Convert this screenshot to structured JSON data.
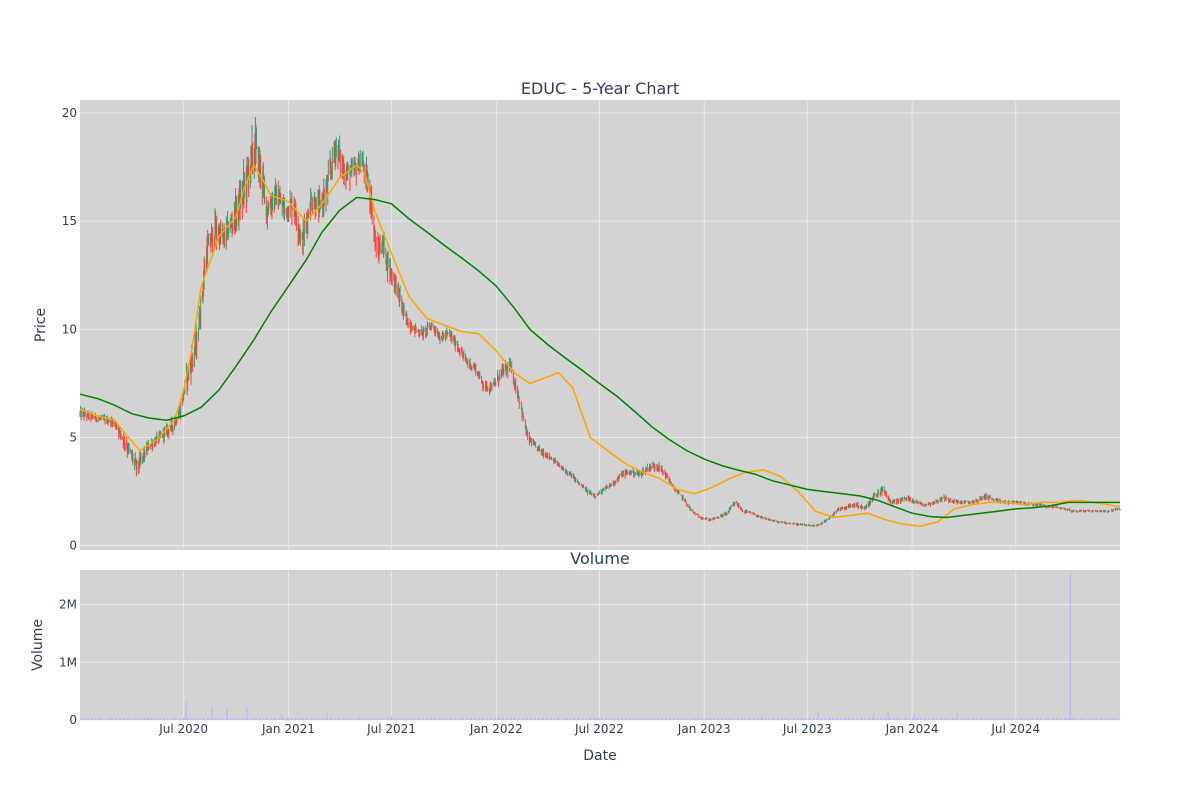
{
  "chart_data": [
    {
      "type": "candlestick",
      "title": "EDUC - 5-Year Chart",
      "xlabel": "",
      "ylabel": "Price",
      "ylim": [
        -0.2,
        20.6
      ],
      "yticks": [
        0,
        5,
        10,
        15,
        20
      ],
      "xlim": [
        "2020-01-01",
        "2024-12-31"
      ],
      "grid": true,
      "legend": "none",
      "colors": {
        "plot_bg": "#d3d3d3",
        "grid": "#e9e9ec",
        "up": "#3d9970",
        "down": "#ff4136",
        "short_ma": "#ffa500",
        "long_ma": "#008000"
      },
      "series": [
        {
          "type": "line",
          "color": "#ffa500",
          "x": [
            "2020-01-01",
            "2020-02-01",
            "2020-03-01",
            "2020-03-20",
            "2020-04-15",
            "2020-05-15",
            "2020-06-15",
            "2020-07-01",
            "2020-07-15",
            "2020-08-01",
            "2020-09-01",
            "2020-10-01",
            "2020-10-15",
            "2020-11-01",
            "2020-11-15",
            "2020-12-01",
            "2021-01-01",
            "2021-02-01",
            "2021-03-01",
            "2021-04-01",
            "2021-05-01",
            "2021-05-15",
            "2021-06-01",
            "2021-07-01",
            "2021-08-01",
            "2021-09-01",
            "2021-10-01",
            "2021-11-01",
            "2021-12-01",
            "2022-01-01",
            "2022-02-01",
            "2022-03-01",
            "2022-04-01",
            "2022-04-20",
            "2022-05-15",
            "2022-06-15",
            "2022-07-15",
            "2022-08-15",
            "2022-09-15",
            "2022-10-15",
            "2022-11-15",
            "2022-12-15",
            "2023-01-15",
            "2023-02-15",
            "2023-03-15",
            "2023-04-15",
            "2023-05-15",
            "2023-06-15",
            "2023-07-15",
            "2023-08-15",
            "2023-09-15",
            "2023-10-15",
            "2023-11-15",
            "2023-12-15",
            "2024-01-15",
            "2024-02-15",
            "2024-03-15",
            "2024-04-15",
            "2024-05-15",
            "2024-06-15",
            "2024-07-15",
            "2024-08-15",
            "2024-09-15",
            "2024-10-15",
            "2024-11-15",
            "2024-12-31"
          ],
          "y": [
            6.3,
            6.0,
            5.8,
            5.2,
            4.4,
            4.9,
            5.8,
            7.2,
            9.0,
            12.0,
            14.3,
            15.2,
            16.5,
            17.6,
            17.0,
            16.2,
            15.9,
            15.0,
            15.8,
            17.0,
            17.6,
            17.2,
            15.5,
            13.5,
            11.5,
            10.5,
            10.2,
            9.9,
            9.8,
            9.0,
            8.0,
            7.5,
            7.8,
            8.0,
            7.3,
            5.0,
            4.4,
            3.8,
            3.4,
            3.1,
            2.6,
            2.4,
            2.7,
            3.1,
            3.4,
            3.5,
            3.2,
            2.5,
            1.6,
            1.3,
            1.4,
            1.5,
            1.2,
            1.0,
            0.9,
            1.1,
            1.7,
            1.9,
            2.0,
            2.0,
            1.9,
            2.0,
            2.0,
            2.1,
            2.0,
            1.8
          ]
        },
        {
          "type": "line",
          "color": "#008000",
          "x": [
            "2020-01-01",
            "2020-02-01",
            "2020-03-01",
            "2020-04-01",
            "2020-05-01",
            "2020-06-01",
            "2020-07-01",
            "2020-08-01",
            "2020-09-01",
            "2020-10-01",
            "2020-11-01",
            "2020-12-01",
            "2021-01-01",
            "2021-02-01",
            "2021-03-01",
            "2021-04-01",
            "2021-05-01",
            "2021-06-01",
            "2021-07-01",
            "2021-08-01",
            "2021-09-01",
            "2021-10-01",
            "2021-11-01",
            "2021-12-01",
            "2022-01-01",
            "2022-02-01",
            "2022-03-01",
            "2022-04-01",
            "2022-05-01",
            "2022-06-01",
            "2022-07-01",
            "2022-08-01",
            "2022-09-01",
            "2022-10-01",
            "2022-11-01",
            "2022-12-01",
            "2023-01-01",
            "2023-02-01",
            "2023-03-01",
            "2023-04-01",
            "2023-05-01",
            "2023-06-01",
            "2023-07-01",
            "2023-08-01",
            "2023-09-01",
            "2023-10-01",
            "2023-11-01",
            "2023-12-01",
            "2024-01-01",
            "2024-02-01",
            "2024-03-01",
            "2024-04-01",
            "2024-05-01",
            "2024-06-01",
            "2024-07-01",
            "2024-08-01",
            "2024-09-01",
            "2024-10-01",
            "2024-11-01",
            "2024-12-31"
          ],
          "y": [
            7.0,
            6.8,
            6.5,
            6.1,
            5.9,
            5.8,
            6.0,
            6.4,
            7.2,
            8.3,
            9.5,
            10.8,
            12.0,
            13.2,
            14.5,
            15.5,
            16.1,
            16.0,
            15.8,
            15.1,
            14.5,
            13.9,
            13.3,
            12.7,
            12.0,
            11.0,
            10.0,
            9.3,
            8.7,
            8.1,
            7.5,
            6.9,
            6.2,
            5.5,
            4.9,
            4.4,
            4.0,
            3.7,
            3.5,
            3.3,
            3.0,
            2.8,
            2.6,
            2.5,
            2.4,
            2.3,
            2.1,
            1.8,
            1.5,
            1.35,
            1.3,
            1.4,
            1.5,
            1.6,
            1.7,
            1.75,
            1.85,
            2.0,
            2.0,
            2.0
          ]
        }
      ],
      "candles_anchor": {
        "x": [
          "2020-01-01",
          "2020-02-01",
          "2020-03-01",
          "2020-03-20",
          "2020-04-10",
          "2020-05-01",
          "2020-05-20",
          "2020-06-10",
          "2020-06-25",
          "2020-07-05",
          "2020-07-15",
          "2020-07-25",
          "2020-08-10",
          "2020-08-25",
          "2020-09-10",
          "2020-09-25",
          "2020-10-10",
          "2020-10-25",
          "2020-11-05",
          "2020-11-15",
          "2020-11-25",
          "2020-12-10",
          "2020-12-25",
          "2021-01-10",
          "2021-01-25",
          "2021-02-10",
          "2021-02-25",
          "2021-03-10",
          "2021-03-25",
          "2021-04-10",
          "2021-04-25",
          "2021-05-10",
          "2021-05-25",
          "2021-06-05",
          "2021-06-15",
          "2021-06-25",
          "2021-07-10",
          "2021-07-25",
          "2021-08-10",
          "2021-08-25",
          "2021-09-10",
          "2021-09-25",
          "2021-10-10",
          "2021-10-25",
          "2021-11-10",
          "2021-11-25",
          "2021-12-10",
          "2021-12-25",
          "2022-01-10",
          "2022-01-25",
          "2022-02-10",
          "2022-02-25",
          "2022-03-10",
          "2022-03-25",
          "2022-04-10",
          "2022-04-25",
          "2022-05-05",
          "2022-05-15",
          "2022-05-25",
          "2022-06-10",
          "2022-06-25",
          "2022-07-10",
          "2022-07-25",
          "2022-08-10",
          "2022-08-25",
          "2022-09-10",
          "2022-09-25",
          "2022-10-10",
          "2022-10-25",
          "2022-11-10",
          "2022-11-25",
          "2022-12-10",
          "2022-12-25",
          "2023-01-10",
          "2023-01-25",
          "2023-02-10",
          "2023-02-25",
          "2023-03-10",
          "2023-03-25",
          "2023-04-10",
          "2023-04-25",
          "2023-05-10",
          "2023-05-25",
          "2023-06-10",
          "2023-06-25",
          "2023-07-10",
          "2023-07-25",
          "2023-08-10",
          "2023-08-25",
          "2023-09-10",
          "2023-09-25",
          "2023-10-10",
          "2023-10-25",
          "2023-11-10",
          "2023-11-25",
          "2023-12-10",
          "2023-12-25",
          "2024-01-10",
          "2024-01-25",
          "2024-02-10",
          "2024-02-25",
          "2024-03-10",
          "2024-03-25",
          "2024-04-10",
          "2024-04-25",
          "2024-05-10",
          "2024-05-25",
          "2024-06-10",
          "2024-06-25",
          "2024-07-10",
          "2024-07-25",
          "2024-08-10",
          "2024-08-25",
          "2024-09-10",
          "2024-09-25",
          "2024-10-10",
          "2024-10-25",
          "2024-11-10",
          "2024-11-25",
          "2024-12-10",
          "2024-12-31"
        ],
        "y": [
          6.1,
          5.9,
          5.7,
          4.8,
          3.6,
          4.6,
          5.0,
          5.5,
          6.2,
          7.6,
          8.5,
          9.5,
          13.5,
          14.6,
          14.2,
          15.0,
          16.0,
          17.5,
          18.4,
          17.0,
          15.5,
          16.2,
          15.5,
          15.8,
          14.0,
          16.0,
          15.6,
          16.5,
          18.5,
          17.2,
          17.3,
          17.8,
          16.2,
          13.5,
          14.0,
          13.0,
          12.0,
          10.5,
          10.0,
          9.8,
          10.2,
          9.6,
          9.8,
          9.2,
          8.5,
          8.2,
          7.4,
          7.3,
          8.0,
          8.3,
          6.8,
          5.0,
          4.6,
          4.3,
          4.0,
          3.6,
          3.4,
          3.2,
          2.9,
          2.5,
          2.3,
          2.6,
          2.9,
          3.3,
          3.4,
          3.3,
          3.6,
          3.7,
          3.3,
          2.6,
          2.2,
          1.6,
          1.3,
          1.2,
          1.3,
          1.5,
          2.0,
          1.6,
          1.5,
          1.3,
          1.2,
          1.1,
          1.05,
          1.0,
          0.95,
          0.9,
          1.0,
          1.3,
          1.7,
          1.8,
          1.9,
          1.7,
          2.2,
          2.6,
          2.0,
          2.1,
          2.2,
          2.0,
          1.9,
          2.0,
          2.2,
          2.1,
          2.0,
          2.0,
          2.1,
          2.3,
          2.1,
          2.0,
          2.0,
          2.0,
          1.9,
          1.9,
          1.8,
          1.8,
          1.7,
          1.6,
          1.6,
          1.6,
          1.6,
          1.6,
          1.7
        ],
        "volatility": [
          0.4,
          0.3,
          0.3,
          0.6,
          0.7,
          0.4,
          0.4,
          0.5,
          0.6,
          0.8,
          1.0,
          1.0,
          1.2,
          1.2,
          1.0,
          1.0,
          1.5,
          1.8,
          1.8,
          1.3,
          1.2,
          1.1,
          1.0,
          1.0,
          1.0,
          1.0,
          1.0,
          1.3,
          1.2,
          1.0,
          0.9,
          0.9,
          1.2,
          1.0,
          0.9,
          0.9,
          0.8,
          0.6,
          0.4,
          0.4,
          0.4,
          0.4,
          0.4,
          0.4,
          0.4,
          0.4,
          0.4,
          0.4,
          0.5,
          0.5,
          0.5,
          0.4,
          0.3,
          0.3,
          0.2,
          0.2,
          0.2,
          0.2,
          0.2,
          0.2,
          0.15,
          0.2,
          0.25,
          0.25,
          0.25,
          0.25,
          0.3,
          0.3,
          0.25,
          0.2,
          0.2,
          0.15,
          0.1,
          0.1,
          0.1,
          0.15,
          0.2,
          0.15,
          0.1,
          0.1,
          0.1,
          0.08,
          0.08,
          0.08,
          0.08,
          0.08,
          0.1,
          0.15,
          0.2,
          0.15,
          0.2,
          0.2,
          0.3,
          0.3,
          0.2,
          0.2,
          0.2,
          0.15,
          0.15,
          0.15,
          0.2,
          0.15,
          0.15,
          0.15,
          0.15,
          0.2,
          0.15,
          0.15,
          0.15,
          0.15,
          0.12,
          0.12,
          0.12,
          0.1,
          0.1,
          0.1,
          0.1,
          0.1,
          0.1,
          0.1,
          0.1
        ]
      }
    },
    {
      "type": "bar",
      "title": "Volume",
      "xlabel": "Date",
      "ylabel": "Volume",
      "ylim": [
        0,
        2600000
      ],
      "yticks": [
        0,
        1000000,
        2000000
      ],
      "ytick_labels": [
        "0",
        "1M",
        "2M"
      ],
      "xlim": [
        "2020-01-01",
        "2024-12-31"
      ],
      "xticks": [
        "2020-07-01",
        "2021-01-01",
        "2021-07-01",
        "2022-01-01",
        "2022-07-01",
        "2023-01-01",
        "2023-07-01",
        "2024-01-01",
        "2024-07-01"
      ],
      "xtick_labels": [
        "Jul 2020",
        "Jan 2021",
        "Jul 2021",
        "Jan 2022",
        "Jul 2022",
        "Jan 2023",
        "Jul 2023",
        "Jan 2024",
        "Jul 2024"
      ],
      "grid": true,
      "colors": {
        "bar": "#b8b8f0",
        "plot_bg": "#d3d3d3",
        "grid": "#e9e9ec"
      },
      "spikes": {
        "x": [
          "2020-07-05",
          "2020-08-20",
          "2020-09-15",
          "2020-10-20",
          "2020-12-20",
          "2021-03-10",
          "2021-07-01",
          "2022-01-05",
          "2023-07-20",
          "2023-10-25",
          "2023-11-20",
          "2024-01-05",
          "2024-03-20",
          "2024-10-05"
        ],
        "values": [
          330000,
          250000,
          190000,
          220000,
          100000,
          130000,
          60000,
          50000,
          140000,
          120000,
          140000,
          110000,
          150000,
          2550000
        ]
      },
      "baseline_volume": 25000
    }
  ]
}
